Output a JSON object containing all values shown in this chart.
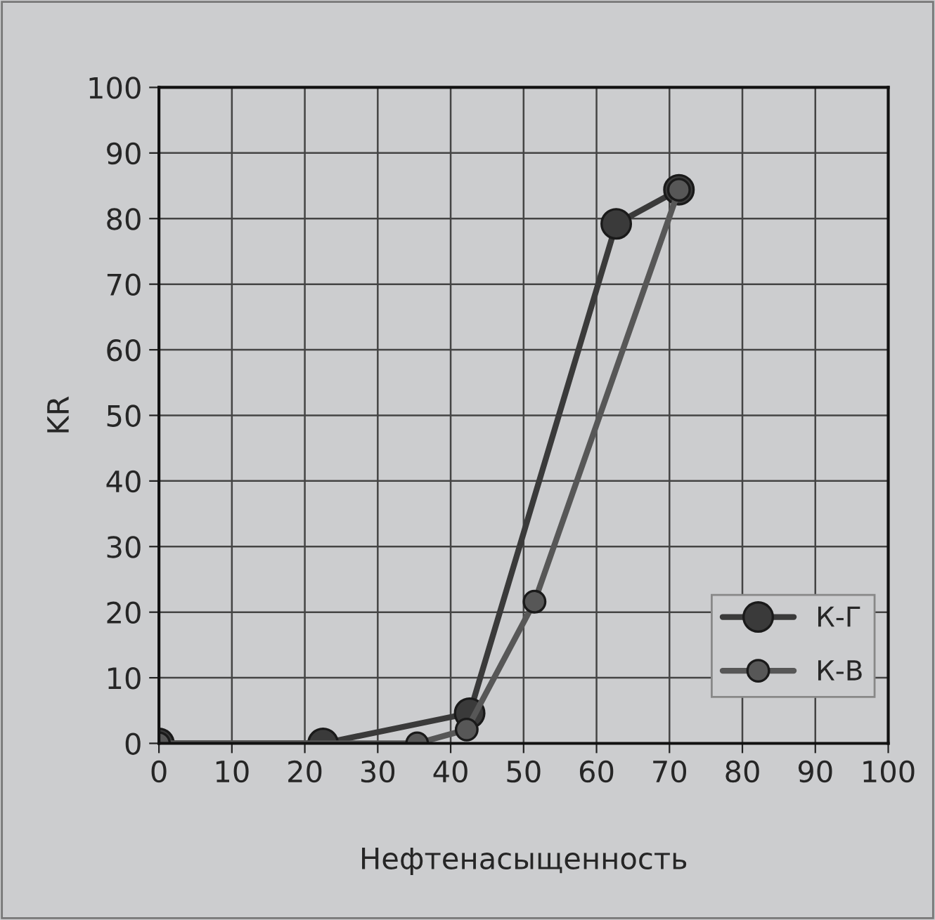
{
  "chart_data": {
    "type": "line",
    "xlabel": "Нефтенасыщенность",
    "ylabel": "KR",
    "xlim": [
      0,
      100
    ],
    "xticks": [
      0,
      10,
      20,
      30,
      40,
      50,
      60,
      70,
      80,
      90,
      100
    ],
    "ylim": [
      0,
      100
    ],
    "yticks": [
      0,
      10,
      20,
      30,
      40,
      50,
      60,
      70,
      80,
      90,
      100
    ],
    "grid": true,
    "legend": "bottom right",
    "marker": "circle",
    "line_style": "solid",
    "series": [
      {
        "name": "К-Г",
        "color": "#3a3a3a",
        "x": [
          0,
          22.5,
          42.6,
          62.7,
          71.3
        ],
        "values": [
          0,
          0,
          4.6,
          79.2,
          84.4
        ]
      },
      {
        "name": "К-В",
        "color": "#575757",
        "x": [
          0,
          35.4,
          42.2,
          51.5,
          71.3
        ],
        "values": [
          0,
          0,
          2.1,
          21.6,
          84.4
        ]
      }
    ]
  }
}
